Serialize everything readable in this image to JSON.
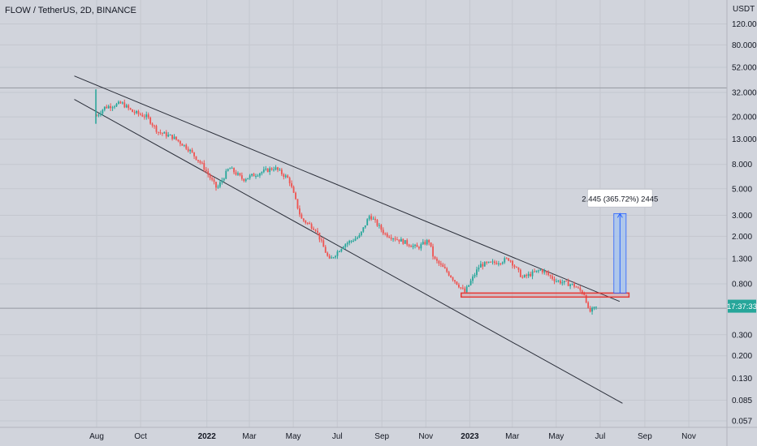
{
  "header": {
    "symbol_title": "FLOW / TetherUS, 2D, BINANCE",
    "currency": "USDT"
  },
  "price_badge": {
    "text": "17:37:33"
  },
  "measure_label": {
    "text": "2.445 (365.72%) 2445"
  },
  "colors": {
    "background": "#d1d4dc",
    "up": "#26a69a",
    "down": "#ef5350",
    "trendline": "#2a2e39",
    "support": "#e53935",
    "measure_fill": "#a9c4ec",
    "measure_line": "#2962ff",
    "badge": "#26a69a"
  },
  "chart_data": {
    "type": "candlestick",
    "title": "FLOW / TetherUS, 2D, BINANCE",
    "ylabel": "USDT",
    "y_scale": "log",
    "ylim": [
      0.05,
      160
    ],
    "y_ticks": [
      "120.000",
      "80.000",
      "52.000",
      "32.000",
      "20.000",
      "13.000",
      "8.000",
      "5.000",
      "3.000",
      "2.000",
      "1.300",
      "0.800",
      "0.300",
      "0.200",
      "0.130",
      "0.085",
      "0.057"
    ],
    "x_ticks": [
      {
        "label": "Aug",
        "date": "2021-08-01",
        "bold": false
      },
      {
        "label": "Oct",
        "date": "2021-10-01",
        "bold": false
      },
      {
        "label": "2022",
        "date": "2022-01-01",
        "bold": true
      },
      {
        "label": "Mar",
        "date": "2022-03-01",
        "bold": false
      },
      {
        "label": "May",
        "date": "2022-05-01",
        "bold": false
      },
      {
        "label": "Jul",
        "date": "2022-07-01",
        "bold": false
      },
      {
        "label": "Sep",
        "date": "2022-09-01",
        "bold": false
      },
      {
        "label": "Nov",
        "date": "2022-11-01",
        "bold": false
      },
      {
        "label": "2023",
        "date": "2023-01-01",
        "bold": true
      },
      {
        "label": "Mar",
        "date": "2023-03-01",
        "bold": false
      },
      {
        "label": "May",
        "date": "2023-05-01",
        "bold": false
      },
      {
        "label": "Jul",
        "date": "2023-07-01",
        "bold": false
      },
      {
        "label": "Sep",
        "date": "2023-09-01",
        "bold": false
      },
      {
        "label": "Nov",
        "date": "2023-11-01",
        "bold": false
      }
    ],
    "close_path": [
      {
        "date": "2021-08-01",
        "price": 20.5
      },
      {
        "date": "2021-08-12",
        "price": 24.0
      },
      {
        "date": "2021-09-05",
        "price": 26.0
      },
      {
        "date": "2021-09-20",
        "price": 22.0
      },
      {
        "date": "2021-10-10",
        "price": 20.0
      },
      {
        "date": "2021-10-25",
        "price": 15.0
      },
      {
        "date": "2021-11-15",
        "price": 13.5
      },
      {
        "date": "2021-12-05",
        "price": 11.0
      },
      {
        "date": "2021-12-25",
        "price": 8.0
      },
      {
        "date": "2022-01-15",
        "price": 5.0
      },
      {
        "date": "2022-02-01",
        "price": 7.5
      },
      {
        "date": "2022-02-20",
        "price": 6.0
      },
      {
        "date": "2022-03-15",
        "price": 6.8
      },
      {
        "date": "2022-04-05",
        "price": 7.5
      },
      {
        "date": "2022-04-25",
        "price": 6.0
      },
      {
        "date": "2022-05-12",
        "price": 2.8
      },
      {
        "date": "2022-06-01",
        "price": 2.3
      },
      {
        "date": "2022-06-20",
        "price": 1.25
      },
      {
        "date": "2022-07-10",
        "price": 1.7
      },
      {
        "date": "2022-08-01",
        "price": 2.0
      },
      {
        "date": "2022-08-15",
        "price": 3.0
      },
      {
        "date": "2022-09-05",
        "price": 2.1
      },
      {
        "date": "2022-10-01",
        "price": 1.8
      },
      {
        "date": "2022-10-20",
        "price": 1.6
      },
      {
        "date": "2022-11-05",
        "price": 1.85
      },
      {
        "date": "2022-11-12",
        "price": 1.3
      },
      {
        "date": "2022-12-01",
        "price": 1.0
      },
      {
        "date": "2022-12-25",
        "price": 0.68
      },
      {
        "date": "2023-01-15",
        "price": 1.15
      },
      {
        "date": "2023-02-05",
        "price": 1.2
      },
      {
        "date": "2023-02-25",
        "price": 1.3
      },
      {
        "date": "2023-03-15",
        "price": 0.9
      },
      {
        "date": "2023-04-10",
        "price": 1.05
      },
      {
        "date": "2023-05-01",
        "price": 0.85
      },
      {
        "date": "2023-05-25",
        "price": 0.78
      },
      {
        "date": "2023-06-10",
        "price": 0.65
      },
      {
        "date": "2023-06-15",
        "price": 0.46
      },
      {
        "date": "2023-06-28",
        "price": 0.52
      }
    ],
    "trendlines": [
      {
        "name": "upper",
        "start": {
          "date": "2021-07-01",
          "price": 44
        },
        "end": {
          "date": "2023-07-28",
          "price": 0.57
        }
      },
      {
        "name": "lower",
        "start": {
          "date": "2021-07-01",
          "price": 28
        },
        "end": {
          "date": "2023-08-01",
          "price": 0.08
        }
      }
    ],
    "support_zone": {
      "start": "2022-12-20",
      "end": "2023-08-10",
      "top": 0.67,
      "bottom": 0.62
    },
    "measure": {
      "start": "2023-07-20",
      "end": "2023-08-06",
      "from": 0.67,
      "to": 3.1
    }
  }
}
